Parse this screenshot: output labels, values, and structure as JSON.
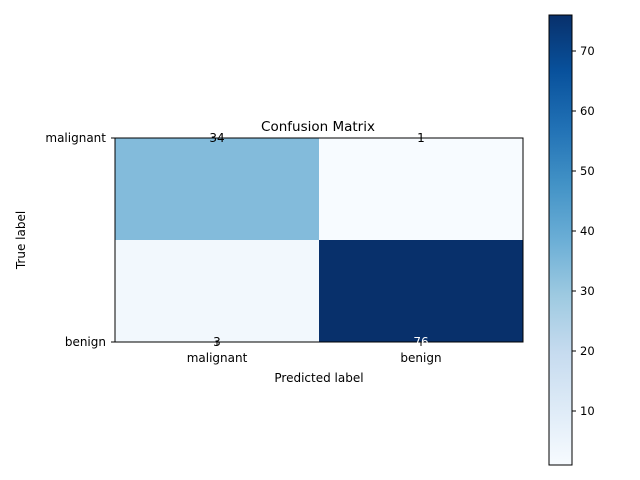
{
  "chart_data": {
    "type": "heatmap",
    "title": "Confusion Matrix",
    "xlabel": "Predicted label",
    "ylabel": "True label",
    "x_categories": [
      "malignant",
      "benign"
    ],
    "y_categories": [
      "malignant",
      "benign"
    ],
    "values": [
      [
        34,
        1
      ],
      [
        3,
        76
      ]
    ],
    "colormap": "Blues",
    "colorbar": {
      "min": 1,
      "max": 76,
      "ticks": [
        "10",
        "20",
        "30",
        "40",
        "50",
        "60",
        "70"
      ]
    },
    "grid": false
  }
}
